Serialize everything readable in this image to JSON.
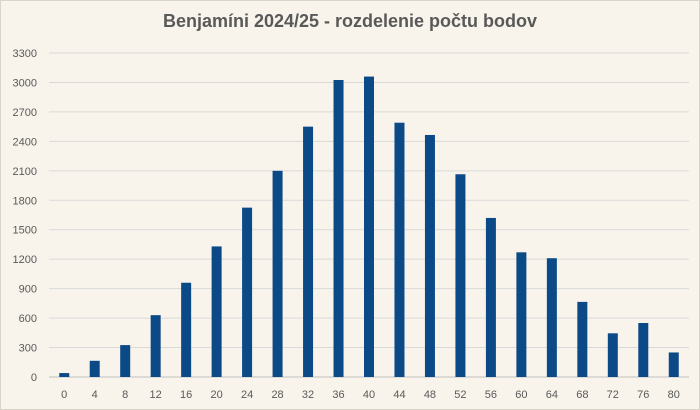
{
  "chart_data": {
    "type": "bar",
    "title": "Benjamíni 2024/25 - rozdelenie počtu bodov",
    "xlabel": "",
    "ylabel": "",
    "categories": [
      "0",
      "4",
      "8",
      "12",
      "16",
      "20",
      "24",
      "28",
      "32",
      "36",
      "40",
      "44",
      "48",
      "52",
      "56",
      "60",
      "64",
      "68",
      "72",
      "76",
      "80"
    ],
    "values": [
      40,
      165,
      325,
      630,
      960,
      1330,
      1725,
      2100,
      2550,
      3025,
      3060,
      2590,
      2465,
      2065,
      1620,
      1270,
      1210,
      765,
      445,
      550,
      250
    ],
    "ylim": [
      0,
      3300
    ],
    "yticks": [
      0,
      300,
      600,
      900,
      1200,
      1500,
      1800,
      2100,
      2400,
      2700,
      3000,
      3300
    ],
    "grid": true,
    "legend": "none",
    "colors": {
      "bar": "#0b4a87",
      "grid": "#d9d9d9",
      "text": "#595959",
      "background": "#f8f4ec"
    }
  }
}
